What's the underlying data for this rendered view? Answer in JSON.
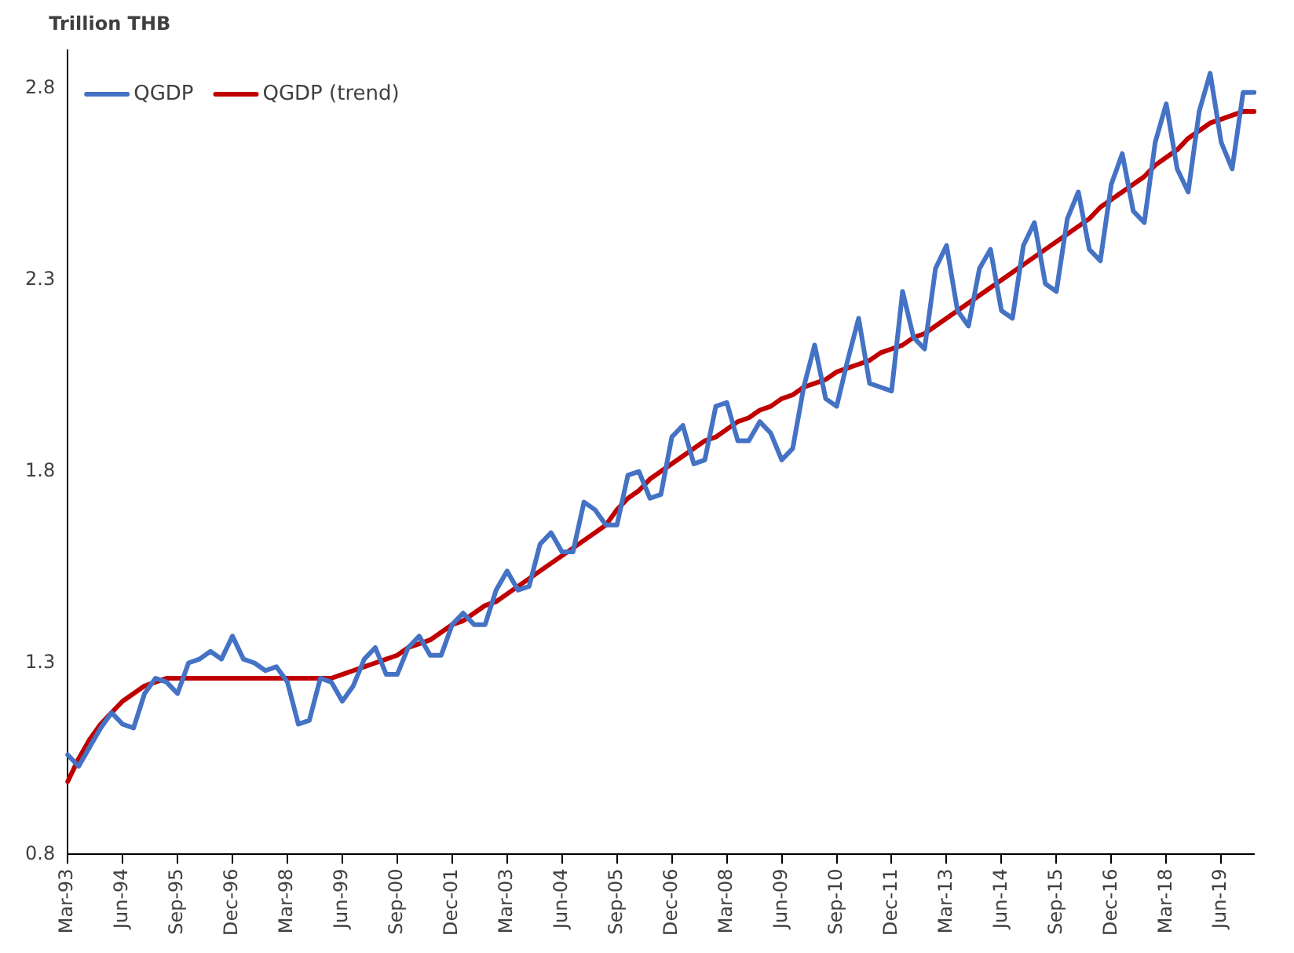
{
  "chart_data": {
    "type": "line",
    "ylabel": "Trillion THB",
    "categories": [
      "Mar-93",
      null,
      null,
      null,
      null,
      "Jun-94",
      null,
      null,
      null,
      null,
      "Sep-95",
      null,
      null,
      null,
      null,
      "Dec-96",
      null,
      null,
      null,
      null,
      "Mar-98",
      null,
      null,
      null,
      null,
      "Jun-99",
      null,
      null,
      null,
      null,
      "Sep-00",
      null,
      null,
      null,
      null,
      "Dec-01",
      null,
      null,
      null,
      null,
      "Mar-03",
      null,
      null,
      null,
      null,
      "Jun-04",
      null,
      null,
      null,
      null,
      "Sep-05",
      null,
      null,
      null,
      null,
      "Dec-06",
      null,
      null,
      null,
      null,
      "Mar-08",
      null,
      null,
      null,
      null,
      "Jun-09",
      null,
      null,
      null,
      null,
      "Sep-10",
      null,
      null,
      null,
      null,
      "Dec-11",
      null,
      null,
      null,
      null,
      "Mar-13",
      null,
      null,
      null,
      null,
      "Jun-14",
      null,
      null,
      null,
      null,
      "Sep-15",
      null,
      null,
      null,
      null,
      "Dec-16",
      null,
      null,
      null,
      null,
      "Mar-18",
      null,
      null,
      null,
      null,
      "Jun-19",
      null,
      null,
      null
    ],
    "series": [
      {
        "name": "QGDP",
        "color": "#4472c4",
        "values": [
          1.06,
          1.03,
          1.08,
          1.13,
          1.17,
          1.14,
          1.13,
          1.22,
          1.26,
          1.25,
          1.22,
          1.3,
          1.31,
          1.33,
          1.31,
          1.37,
          1.31,
          1.3,
          1.28,
          1.29,
          1.25,
          1.14,
          1.15,
          1.26,
          1.25,
          1.2,
          1.24,
          1.31,
          1.34,
          1.27,
          1.27,
          1.34,
          1.37,
          1.32,
          1.32,
          1.4,
          1.43,
          1.4,
          1.4,
          1.49,
          1.54,
          1.49,
          1.5,
          1.61,
          1.64,
          1.59,
          1.59,
          1.72,
          1.7,
          1.66,
          1.66,
          1.79,
          1.8,
          1.73,
          1.74,
          1.89,
          1.92,
          1.82,
          1.83,
          1.97,
          1.98,
          1.88,
          1.88,
          1.93,
          1.9,
          1.83,
          1.86,
          2.02,
          2.13,
          1.99,
          1.97,
          2.09,
          2.2,
          2.03,
          2.02,
          2.01,
          2.27,
          2.15,
          2.12,
          2.33,
          2.39,
          2.22,
          2.18,
          2.33,
          2.38,
          2.22,
          2.2,
          2.39,
          2.45,
          2.29,
          2.27,
          2.46,
          2.53,
          2.38,
          2.35,
          2.55,
          2.63,
          2.48,
          2.45,
          2.66,
          2.76,
          2.59,
          2.53,
          2.74,
          2.84,
          2.66,
          2.59,
          2.79,
          2.79
        ]
      },
      {
        "name": "QGDP (trend)",
        "color": "#c00000",
        "values": [
          0.99,
          1.05,
          1.1,
          1.14,
          1.17,
          1.2,
          1.22,
          1.24,
          1.25,
          1.26,
          1.26,
          1.26,
          1.26,
          1.26,
          1.26,
          1.26,
          1.26,
          1.26,
          1.26,
          1.26,
          1.26,
          1.26,
          1.26,
          1.26,
          1.26,
          1.27,
          1.28,
          1.29,
          1.3,
          1.31,
          1.32,
          1.34,
          1.35,
          1.36,
          1.38,
          1.4,
          1.41,
          1.43,
          1.45,
          1.46,
          1.48,
          1.5,
          1.52,
          1.54,
          1.56,
          1.58,
          1.6,
          1.62,
          1.64,
          1.66,
          1.7,
          1.73,
          1.75,
          1.78,
          1.8,
          1.82,
          1.84,
          1.86,
          1.88,
          1.89,
          1.91,
          1.93,
          1.94,
          1.96,
          1.97,
          1.99,
          2.0,
          2.02,
          2.03,
          2.04,
          2.06,
          2.07,
          2.08,
          2.09,
          2.11,
          2.12,
          2.13,
          2.15,
          2.16,
          2.18,
          2.2,
          2.22,
          2.24,
          2.26,
          2.28,
          2.3,
          2.32,
          2.34,
          2.36,
          2.38,
          2.4,
          2.42,
          2.44,
          2.46,
          2.49,
          2.51,
          2.53,
          2.55,
          2.57,
          2.6,
          2.62,
          2.64,
          2.67,
          2.69,
          2.71,
          2.72,
          2.73,
          2.74,
          2.74
        ]
      }
    ],
    "ylim": [
      0.8,
      2.9
    ],
    "yticks": [
      0.8,
      1.3,
      1.8,
      2.3,
      2.8
    ],
    "grid": false,
    "legend": "top left",
    "marker": "none",
    "line_style": "solid"
  }
}
